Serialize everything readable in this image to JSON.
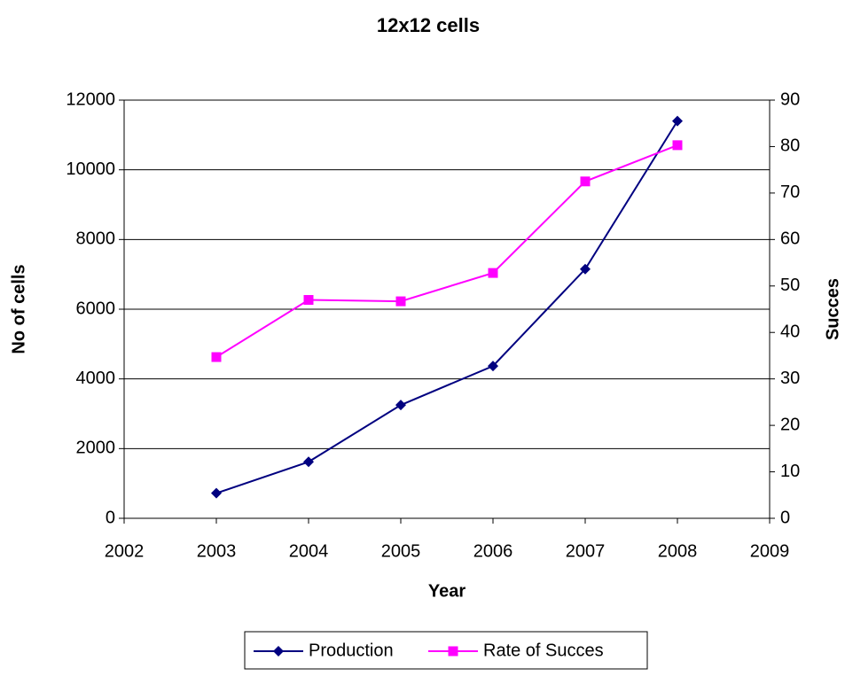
{
  "chart_data": {
    "type": "line",
    "title": "12x12 cells",
    "xlabel": "Year",
    "ylabel": "No of cells",
    "y2label": "Succes",
    "x": [
      2003,
      2004,
      2005,
      2006,
      2007,
      2008
    ],
    "series": [
      {
        "name": "Production",
        "color": "#000080",
        "marker": "diamond",
        "values": [
          720,
          1620,
          3250,
          4370,
          7150,
          11400
        ]
      },
      {
        "name": "Rate of Succes",
        "color": "#ff00ff",
        "marker": "square",
        "axis": "y2",
        "values": [
          34.7,
          47,
          46.7,
          52.8,
          72.5,
          80.3
        ]
      }
    ],
    "xlim": [
      2002,
      2009
    ],
    "xticks": [
      2002,
      2003,
      2004,
      2005,
      2006,
      2007,
      2008,
      2009
    ],
    "ylim": [
      0,
      12000
    ],
    "yticks": [
      0,
      2000,
      4000,
      6000,
      8000,
      10000,
      12000
    ],
    "y2lim": [
      0,
      90
    ],
    "y2ticks": [
      0,
      10,
      20,
      30,
      40,
      50,
      60,
      70,
      80,
      90
    ],
    "grid": true,
    "legend": "bottom"
  }
}
